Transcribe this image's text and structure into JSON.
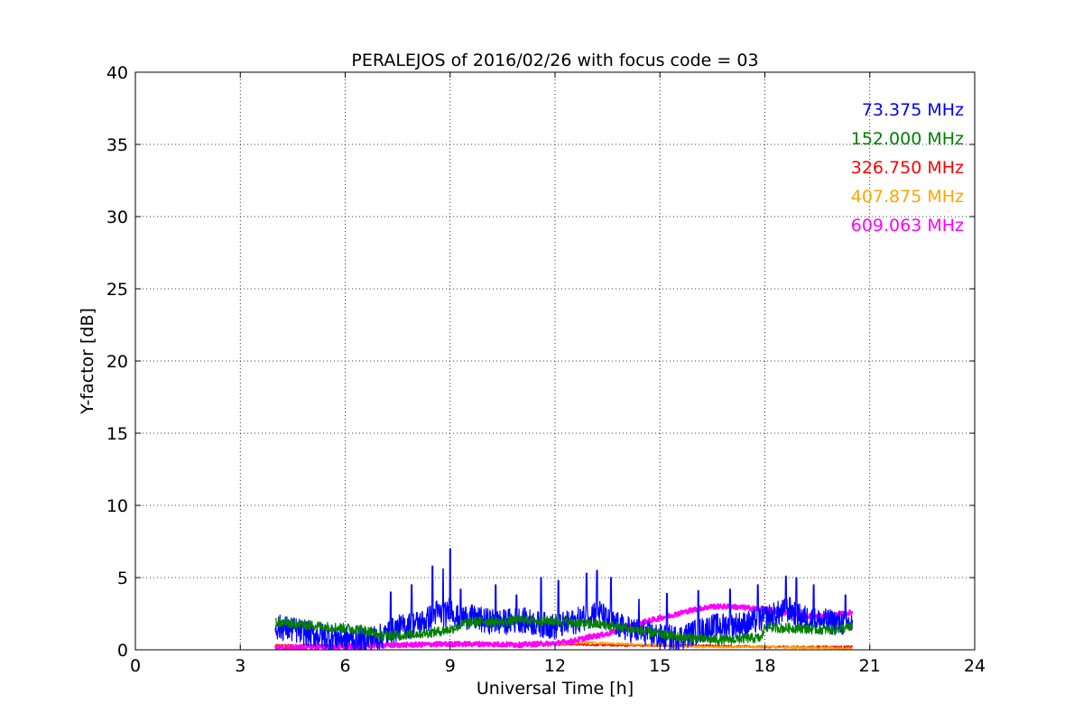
{
  "chart_data": {
    "type": "line",
    "title": "PERALEJOS of 2016/02/26 with focus code = 03",
    "xlabel": "Universal Time [h]",
    "ylabel": "Y-factor [dB]",
    "xlim": [
      0,
      24
    ],
    "ylim": [
      0,
      40
    ],
    "xticks": [
      "0",
      "3",
      "6",
      "9",
      "12",
      "15",
      "18",
      "21",
      "24"
    ],
    "yticks": [
      "0",
      "5",
      "10",
      "15",
      "20",
      "25",
      "30",
      "35",
      "40"
    ],
    "grid": true,
    "legend_position": "top-right",
    "series": [
      {
        "name": "73.375 MHz",
        "color": "#0000ff",
        "x": [
          4.0,
          4.5,
          5.0,
          5.5,
          6.0,
          6.5,
          7.0,
          7.5,
          8.0,
          8.3,
          8.6,
          8.9,
          9.0,
          9.2,
          9.5,
          10.0,
          10.5,
          11.0,
          11.5,
          12.0,
          12.5,
          13.0,
          13.2,
          13.5,
          14.0,
          14.5,
          15.0,
          15.5,
          16.0,
          16.5,
          17.0,
          17.5,
          18.0,
          18.5,
          18.7,
          19.0,
          19.5,
          20.0,
          20.5
        ],
        "y": [
          1.6,
          1.4,
          1.1,
          0.9,
          0.8,
          0.7,
          0.9,
          1.5,
          1.8,
          2.0,
          2.6,
          2.4,
          3.0,
          2.2,
          2.3,
          2.0,
          1.9,
          2.1,
          1.8,
          1.6,
          1.9,
          2.4,
          2.8,
          2.0,
          1.5,
          1.2,
          0.9,
          0.8,
          1.2,
          1.6,
          1.7,
          1.8,
          2.2,
          2.6,
          2.8,
          2.3,
          2.0,
          1.9,
          1.8
        ],
        "peaks_x": [
          7.3,
          7.9,
          8.5,
          8.8,
          9.0,
          9.3,
          10.3,
          10.9,
          11.6,
          12.1,
          12.9,
          13.2,
          13.6,
          14.4,
          15.2,
          16.1,
          17.0,
          17.8,
          18.6,
          18.9,
          19.4,
          20.3
        ],
        "peaks_y": [
          4.0,
          4.5,
          5.8,
          5.6,
          7.0,
          4.2,
          4.5,
          3.8,
          5.0,
          4.8,
          5.3,
          5.5,
          5.0,
          3.5,
          3.9,
          4.1,
          4.2,
          4.5,
          5.1,
          5.0,
          4.5,
          3.8
        ]
      },
      {
        "name": "152.000 MHz",
        "color": "#008000",
        "x": [
          4.0,
          4.5,
          5.0,
          5.5,
          6.0,
          6.5,
          7.0,
          7.5,
          8.0,
          8.5,
          9.0,
          9.5,
          10.0,
          10.5,
          11.0,
          11.5,
          12.0,
          12.5,
          13.0,
          13.5,
          14.0,
          14.5,
          15.0,
          15.5,
          16.0,
          16.5,
          17.0,
          17.5,
          17.9,
          18.0,
          18.5,
          19.0,
          19.5,
          20.0,
          20.5
        ],
        "y": [
          1.9,
          1.8,
          1.7,
          1.6,
          1.5,
          1.4,
          1.0,
          1.0,
          1.1,
          1.2,
          1.4,
          1.9,
          2.0,
          1.9,
          2.1,
          2.0,
          2.0,
          1.9,
          1.8,
          1.7,
          1.5,
          1.3,
          1.1,
          0.9,
          0.8,
          0.7,
          0.7,
          0.8,
          0.8,
          1.6,
          1.5,
          1.5,
          1.4,
          1.4,
          1.6
        ]
      },
      {
        "name": "326.750 MHz",
        "color": "#ff0000",
        "x": [
          4.0,
          6.0,
          8.0,
          10.0,
          12.0,
          14.0,
          16.0,
          18.0,
          20.5
        ],
        "y": [
          0.3,
          0.3,
          0.4,
          0.4,
          0.4,
          0.3,
          0.3,
          0.2,
          0.2
        ]
      },
      {
        "name": "407.875 MHz",
        "color": "#ffa500",
        "x": [
          4.0,
          6.0,
          8.0,
          10.0,
          12.0,
          13.0,
          14.0,
          15.0,
          16.0,
          18.0,
          20.5
        ],
        "y": [
          0.2,
          0.3,
          0.4,
          0.4,
          0.4,
          0.5,
          0.4,
          0.3,
          0.2,
          0.2,
          0.1
        ]
      },
      {
        "name": "609.063 MHz",
        "color": "#ff00ff",
        "x": [
          4.0,
          5.0,
          6.0,
          7.0,
          8.0,
          9.0,
          10.0,
          11.0,
          12.0,
          12.5,
          13.0,
          13.5,
          14.0,
          14.5,
          15.0,
          15.5,
          16.0,
          16.5,
          17.0,
          17.5,
          18.0,
          18.5,
          19.0,
          19.5,
          20.0,
          20.5
        ],
        "y": [
          0.1,
          0.2,
          0.2,
          0.3,
          0.35,
          0.4,
          0.4,
          0.35,
          0.45,
          0.6,
          0.9,
          1.1,
          1.5,
          1.9,
          2.2,
          2.5,
          2.8,
          3.0,
          3.0,
          2.9,
          2.8,
          2.6,
          2.4,
          2.3,
          2.4,
          2.6
        ]
      }
    ]
  }
}
